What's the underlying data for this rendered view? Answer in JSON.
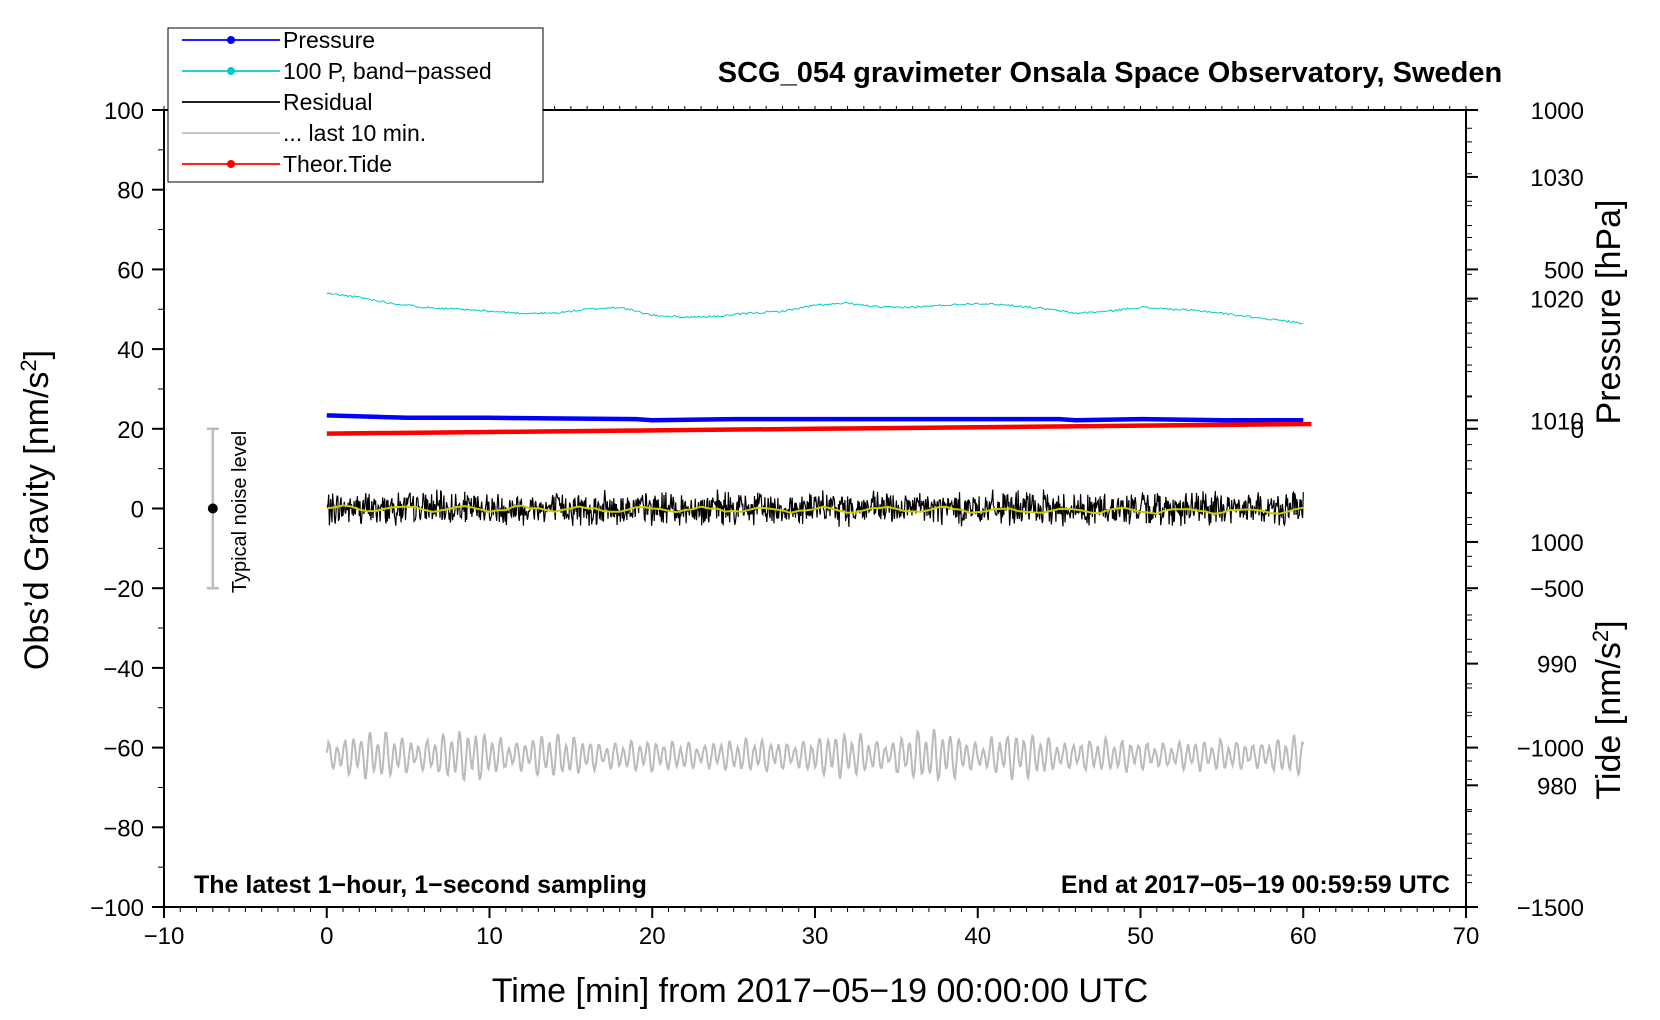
{
  "chart_data": {
    "type": "line",
    "title": "SCG_054 gravimeter Onsala Space Observatory, Sweden",
    "xlabel": "Time [min] from 2017−05−19 00:00:00 UTC",
    "ylabel": "Obs’d Gravity [nm/s",
    "ylabel_sup": "2",
    "ylabel_end": "]",
    "y2label": "Pressure [hPa]",
    "y3label": "Tide [nm/s",
    "y3label_sup": "2",
    "y3label_end": "]",
    "xlim": [
      -10,
      70
    ],
    "ylim": [
      -100,
      100
    ],
    "x_ticks": [
      -10,
      0,
      10,
      20,
      30,
      40,
      50,
      60,
      70
    ],
    "x_tick_labels": [
      "−10",
      "0",
      "10",
      "20",
      "30",
      "40",
      "50",
      "60",
      "70"
    ],
    "y_ticks": [
      100,
      80,
      60,
      40,
      20,
      0,
      -20,
      -40,
      -60,
      -80,
      -100
    ],
    "y_tick_labels": [
      "100",
      "80",
      "60",
      "40",
      "20",
      "0",
      "−20",
      "−40",
      "−60",
      "−80",
      "−100"
    ],
    "pressure_axis": {
      "ylim": [
        970,
        1035.5
      ],
      "ticks": [
        1030,
        1020,
        1010,
        1000,
        990,
        980
      ],
      "tick_labels": [
        "1030",
        "1020",
        "1010",
        "1000",
        "990",
        "980"
      ]
    },
    "tide_axis": {
      "ylim": [
        -1500,
        1000
      ],
      "ticks": [
        1000,
        500,
        0,
        -500,
        -1000,
        -1500
      ],
      "tick_labels": [
        "1000",
        "500",
        "0",
        "−500",
        "−1000",
        "−1500"
      ]
    },
    "legend": [
      {
        "label": "Pressure",
        "color": "#0000ff",
        "marker": true
      },
      {
        "label": "100 P, band−passed",
        "color": "#00cccc",
        "marker": true
      },
      {
        "label": "Residual",
        "color": "#000000",
        "marker": false
      },
      {
        "label": "... last 10 min.",
        "color": "#bbbbbb",
        "marker": false
      },
      {
        "label": "Theor.Tide",
        "color": "#ff0000",
        "marker": true
      }
    ],
    "legend_position": "top-left",
    "noise_bar": {
      "label": "Typical noise level",
      "x": -7,
      "y": 0,
      "low": -20,
      "high": 20
    },
    "annotation_left": "The latest 1−hour, 1−second sampling",
    "annotation_right": "End at 2017−05−19 00:59:59 UTC",
    "series": [
      {
        "name": "Pressure",
        "color": "#0000ff",
        "axis": "pressure",
        "x": [
          0,
          5,
          10,
          19,
          20,
          25,
          30,
          35,
          40,
          45,
          46,
          50,
          55,
          60
        ],
        "values": [
          1010.4,
          1010.2,
          1010.2,
          1010.1,
          1010.0,
          1010.1,
          1010.1,
          1010.1,
          1010.1,
          1010.1,
          1010.0,
          1010.1,
          1010.0,
          1010.0
        ]
      },
      {
        "name": "100 P, band−passed",
        "color": "#00cccc",
        "axis": "gravity",
        "x": [
          0,
          2,
          4,
          6,
          8,
          10,
          12,
          14,
          16,
          18,
          20,
          22,
          24,
          26,
          28,
          30,
          32,
          34,
          36,
          38,
          40,
          42,
          44,
          46,
          48,
          50,
          52,
          54,
          56,
          58,
          60
        ],
        "values": [
          54,
          53,
          51.5,
          50.5,
          50,
          49.5,
          49,
          49,
          50,
          50.5,
          48.5,
          48,
          48.2,
          49,
          49.5,
          51,
          51.5,
          50.5,
          50.5,
          51,
          51.5,
          51,
          50.2,
          49,
          49.5,
          50.5,
          50,
          49.5,
          48.5,
          47.5,
          46.5
        ]
      },
      {
        "name": "Residual",
        "color": "#000000",
        "axis": "gravity",
        "center": 0,
        "amplitude": 4.5
      },
      {
        "name": "... last 10 min.",
        "color": "#bbbbbb",
        "axis": "gravity",
        "center": -62,
        "amplitude": 5
      },
      {
        "name": "Theor.Tide",
        "color": "#ff0000",
        "axis": "tide",
        "x": [
          0,
          10,
          20,
          30,
          40,
          50,
          60.5
        ],
        "values": [
          -15,
          -10,
          -5,
          0,
          5,
          10,
          15
        ]
      }
    ]
  }
}
